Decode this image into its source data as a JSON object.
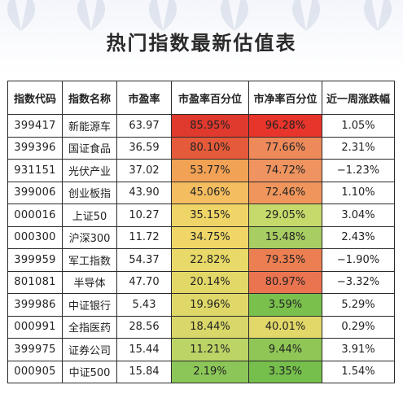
{
  "title": "热门指数最新估值表",
  "colors": {
    "high": "#e83a2e",
    "mid_high": "#f09a54",
    "mid": "#eed76a",
    "mid_low": "#c8d86a",
    "low": "#6dbb46"
  },
  "table": {
    "headers": [
      "指数代码",
      "指数名称",
      "市盈率",
      "市盈率百分位",
      "市净率百分位",
      "近一周涨跌幅"
    ],
    "rows": [
      {
        "code": "399417",
        "name": "新能源车",
        "pe": "63.97",
        "pe_pct": "85.95%",
        "pb_pct": "96.28%",
        "week": "1.05%",
        "pe_color": "#e0392e",
        "pb_color": "#e8352c"
      },
      {
        "code": "399396",
        "name": "国证食品",
        "pe": "36.59",
        "pe_pct": "80.10%",
        "pb_pct": "77.66%",
        "week": "2.31%",
        "pe_color": "#e55a3a",
        "pb_color": "#ee8a5a"
      },
      {
        "code": "931151",
        "name": "光伏产业",
        "pe": "37.02",
        "pe_pct": "53.77%",
        "pb_pct": "74.72%",
        "week": "−1.23%",
        "pe_color": "#f2a255",
        "pb_color": "#ef9460"
      },
      {
        "code": "399006",
        "name": "创业板指",
        "pe": "43.90",
        "pe_pct": "45.06%",
        "pb_pct": "72.46%",
        "week": "1.10%",
        "pe_color": "#f3bd60",
        "pb_color": "#f0965c"
      },
      {
        "code": "000016",
        "name": "上证50",
        "pe": "10.27",
        "pe_pct": "35.15%",
        "pb_pct": "29.05%",
        "week": "3.04%",
        "pe_color": "#efd567",
        "pb_color": "#c6d96b"
      },
      {
        "code": "000300",
        "name": "沪深300",
        "pe": "11.72",
        "pe_pct": "34.75%",
        "pb_pct": "15.48%",
        "week": "2.43%",
        "pe_color": "#efd667",
        "pb_color": "#a8cd62"
      },
      {
        "code": "399959",
        "name": "军工指数",
        "pe": "54.37",
        "pe_pct": "22.82%",
        "pb_pct": "79.35%",
        "week": "−1.90%",
        "pe_color": "#e8d968",
        "pb_color": "#ec7f52"
      },
      {
        "code": "801081",
        "name": "半导体",
        "pe": "47.70",
        "pe_pct": "20.14%",
        "pb_pct": "80.97%",
        "week": "−3.32%",
        "pe_color": "#e2d868",
        "pb_color": "#ea7450"
      },
      {
        "code": "399986",
        "name": "中证银行",
        "pe": "5.43",
        "pe_pct": "19.96%",
        "pb_pct": "3.59%",
        "week": "5.29%",
        "pe_color": "#dfd869",
        "pb_color": "#79c04d"
      },
      {
        "code": "000991",
        "name": "全指医药",
        "pe": "28.56",
        "pe_pct": "18.44%",
        "pb_pct": "40.01%",
        "week": "0.29%",
        "pe_color": "#d9d769",
        "pb_color": "#e2d869"
      },
      {
        "code": "399975",
        "name": "证券公司",
        "pe": "15.44",
        "pe_pct": "11.21%",
        "pb_pct": "9.44%",
        "week": "3.91%",
        "pe_color": "#bcd466",
        "pb_color": "#8fc656"
      },
      {
        "code": "000905",
        "name": "中证500",
        "pe": "15.84",
        "pe_pct": "2.19%",
        "pb_pct": "3.35%",
        "week": "1.54%",
        "pe_color": "#8cc658",
        "pb_color": "#76bf4c"
      }
    ]
  },
  "icons": [
    "petal-watermark-icon"
  ]
}
